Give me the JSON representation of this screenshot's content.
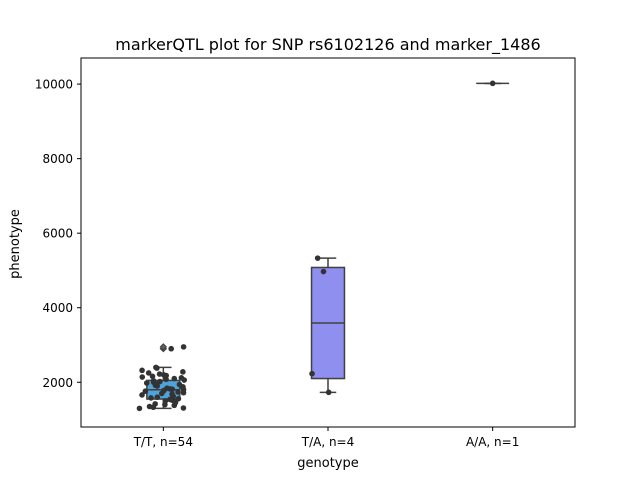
{
  "chart_data": {
    "type": "box",
    "title": "markerQTL plot for SNP rs6102126 and marker_1486",
    "xlabel": "genotype",
    "ylabel": "phenotype",
    "ylim": [
      800,
      10700
    ],
    "yticks": [
      2000,
      4000,
      6000,
      8000,
      10000
    ],
    "categories": [
      "T/T, n=54",
      "T/A, n=4",
      "A/A, n=1"
    ],
    "boxes": [
      {
        "category": "T/T, n=54",
        "color": "#4fa3d8",
        "whisker_low": 1300,
        "q1": 1550,
        "median": 1800,
        "q3": 2050,
        "whisker_high": 2400,
        "outliers": [
          2900,
          2950
        ]
      },
      {
        "category": "T/A, n=4",
        "color": "#8f8ff0",
        "whisker_low": 1730,
        "q1": 2100,
        "median": 3590,
        "q3": 5080,
        "whisker_high": 5330,
        "outliers": []
      },
      {
        "category": "A/A, n=1",
        "color": "#f2a34b",
        "whisker_low": 10020,
        "q1": 10020,
        "median": 10020,
        "q3": 10020,
        "whisker_high": 10020,
        "outliers": []
      }
    ],
    "points": [
      {
        "category": "T/T, n=54",
        "values": [
          1300,
          1310,
          1330,
          1350,
          1380,
          1400,
          1420,
          1450,
          1480,
          1500,
          1520,
          1540,
          1560,
          1580,
          1600,
          1620,
          1640,
          1660,
          1680,
          1700,
          1720,
          1740,
          1760,
          1780,
          1800,
          1810,
          1820,
          1840,
          1860,
          1880,
          1900,
          1920,
          1940,
          1960,
          1980,
          2000,
          2020,
          2040,
          2060,
          2080,
          2100,
          2120,
          2140,
          2160,
          2180,
          2200,
          2220,
          2250,
          2280,
          2320,
          2380,
          2400,
          2900,
          2950
        ]
      },
      {
        "category": "T/A, n=4",
        "values": [
          1730,
          2230,
          4970,
          5330
        ]
      },
      {
        "category": "A/A, n=1",
        "values": [
          10020
        ]
      }
    ],
    "grid": false,
    "legend": "none"
  }
}
